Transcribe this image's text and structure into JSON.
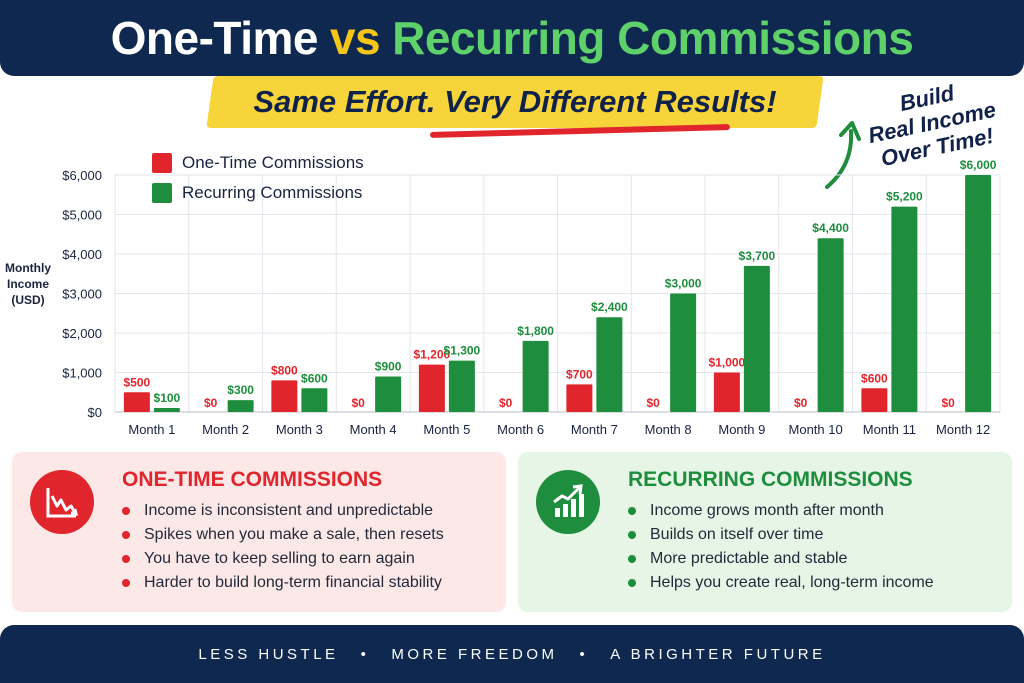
{
  "title": {
    "part1": "One-Time",
    "part2": "vs",
    "part3": "Recurring Commissions"
  },
  "subtitle": "Same Effort. Very Different Results!",
  "callout": {
    "lines": [
      "Build",
      "Real Income",
      "Over Time!"
    ]
  },
  "colors": {
    "red": "#e0262c",
    "green": "#1e8e3e",
    "navy": "#0f2850",
    "yellow": "#f7d53a"
  },
  "chart_data": {
    "type": "bar",
    "title": "",
    "xlabel": "",
    "ylabel": "Monthly Income (USD)",
    "ylabel_lines": [
      "Monthly",
      "Income",
      "(USD)"
    ],
    "ylim": [
      0,
      6000
    ],
    "yticks": [
      "$0",
      "$1,000",
      "$2,000",
      "$3,000",
      "$4,000",
      "$5,000",
      "$6,000"
    ],
    "ytick_values": [
      0,
      1000,
      2000,
      3000,
      4000,
      5000,
      6000
    ],
    "categories": [
      "Month 1",
      "Month 2",
      "Month 3",
      "Month 4",
      "Month 5",
      "Month 6",
      "Month 7",
      "Month 8",
      "Month 9",
      "Month 10",
      "Month 11",
      "Month 12"
    ],
    "series": [
      {
        "name": "One-Time Commissions",
        "color": "#e0262c",
        "values": [
          500,
          0,
          800,
          0,
          1200,
          0,
          700,
          0,
          1000,
          0,
          600,
          0
        ],
        "labels": [
          "$500",
          "$0",
          "$800",
          "$0",
          "$1,200",
          "$0",
          "$700",
          "$0",
          "$1,000",
          "$0",
          "$600",
          "$0"
        ]
      },
      {
        "name": "Recurring Commissions",
        "color": "#1e8e3e",
        "values": [
          100,
          300,
          600,
          900,
          1300,
          1800,
          2400,
          3000,
          3700,
          4400,
          5200,
          6000
        ],
        "labels": [
          "$100",
          "$300",
          "$600",
          "$900",
          "$1,300",
          "$1,800",
          "$2,400",
          "$3,000",
          "$3,700",
          "$4,400",
          "$5,200",
          "$6,000"
        ]
      }
    ],
    "grid": true,
    "legend": "top-left"
  },
  "panels": {
    "one_time": {
      "title": "ONE-TIME COMMISSIONS",
      "icon": "downtrend-chart-icon",
      "items": [
        "Income is inconsistent and unpredictable",
        "Spikes when you make a sale, then resets",
        "You have to keep selling to earn again",
        "Harder to build long-term financial stability"
      ]
    },
    "recurring": {
      "title": "RECURRING COMMISSIONS",
      "icon": "growth-chart-icon",
      "items": [
        "Income grows month after month",
        "Builds on itself over time",
        "More predictable and stable",
        "Helps you create real, long-term income"
      ]
    }
  },
  "footer": {
    "items": [
      "LESS HUSTLE",
      "MORE FREEDOM",
      "A BRIGHTER FUTURE"
    ],
    "separator": "•"
  }
}
